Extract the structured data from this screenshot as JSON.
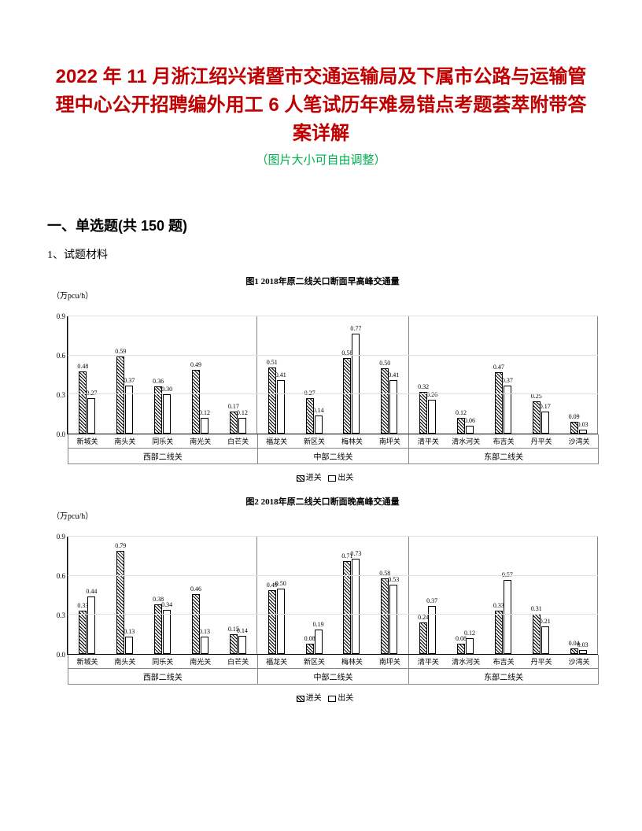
{
  "title": "2022 年 11 月浙江绍兴诸暨市交通运输局及下属市公路与运输管理中心公开招聘编外用工 6 人笔试历年难易错点考题荟萃附带答案详解",
  "subtitle": "（图片大小可自由调整）",
  "section_heading": "一、单选题(共 150 题)",
  "question_label": "1、试题材料",
  "legend": {
    "in": "进关",
    "out": "出关"
  },
  "ylabel": "（万pcu/h）",
  "yaxis": {
    "ticks": [
      0,
      0.3,
      0.6,
      0.9
    ],
    "max": 0.9,
    "grid_color": "#e0e0e0"
  },
  "colors": {
    "title": "#c00000",
    "subtitle": "#00b050",
    "axis": "#000000",
    "bar_in_pattern": "hatch",
    "bar_out": "#ffffff",
    "border": "#888888"
  },
  "chart1": {
    "title": "图1  2018年原二线关口断面早高峰交通量",
    "groups": [
      {
        "name": "西部二线关",
        "cats": [
          {
            "name": "新城关",
            "in": 0.48,
            "out": 0.27
          },
          {
            "name": "南头关",
            "in": 0.59,
            "out": 0.37
          },
          {
            "name": "同乐关",
            "in": 0.36,
            "out": 0.3
          },
          {
            "name": "南光关",
            "in": 0.49,
            "out": 0.12
          },
          {
            "name": "白芒关",
            "in": 0.17,
            "out": 0.12
          }
        ]
      },
      {
        "name": "中部二线关",
        "cats": [
          {
            "name": "福龙关",
            "in": 0.51,
            "out": 0.41
          },
          {
            "name": "新区关",
            "in": 0.27,
            "out": 0.14
          },
          {
            "name": "梅林关",
            "in": 0.58,
            "out": 0.77
          },
          {
            "name": "南坪关",
            "in": 0.5,
            "out": 0.41
          }
        ]
      },
      {
        "name": "东部二线关",
        "cats": [
          {
            "name": "清平关",
            "in": 0.32,
            "out": 0.26
          },
          {
            "name": "清水河关",
            "in": 0.12,
            "out": 0.06
          },
          {
            "name": "布吉关",
            "in": 0.47,
            "out": 0.37
          },
          {
            "name": "丹平关",
            "in": 0.25,
            "out": 0.17
          },
          {
            "name": "沙湾关",
            "in": 0.09,
            "out": 0.03
          }
        ]
      }
    ]
  },
  "chart2": {
    "title": "图2  2018年原二线关口断面晚高峰交通量",
    "groups": [
      {
        "name": "西部二线关",
        "cats": [
          {
            "name": "新城关",
            "in": 0.33,
            "out": 0.44
          },
          {
            "name": "南头关",
            "in": 0.79,
            "out": 0.13
          },
          {
            "name": "同乐关",
            "in": 0.38,
            "out": 0.34
          },
          {
            "name": "南光关",
            "in": 0.46,
            "out": 0.13
          },
          {
            "name": "白芒关",
            "in": 0.15,
            "out": 0.14
          }
        ]
      },
      {
        "name": "中部二线关",
        "cats": [
          {
            "name": "福龙关",
            "in": 0.49,
            "out": 0.5
          },
          {
            "name": "新区关",
            "in": 0.08,
            "out": 0.19
          },
          {
            "name": "梅林关",
            "in": 0.71,
            "out": 0.73
          },
          {
            "name": "南坪关",
            "in": 0.58,
            "out": 0.53
          }
        ]
      },
      {
        "name": "东部二线关",
        "cats": [
          {
            "name": "清平关",
            "in": 0.24,
            "out": 0.37
          },
          {
            "name": "清水河关",
            "in": 0.08,
            "out": 0.12
          },
          {
            "name": "布吉关",
            "in": 0.33,
            "out": 0.57
          },
          {
            "name": "丹平关",
            "in": 0.31,
            "out": 0.21
          },
          {
            "name": "沙湾关",
            "in": 0.04,
            "out": 0.03
          }
        ]
      }
    ]
  }
}
